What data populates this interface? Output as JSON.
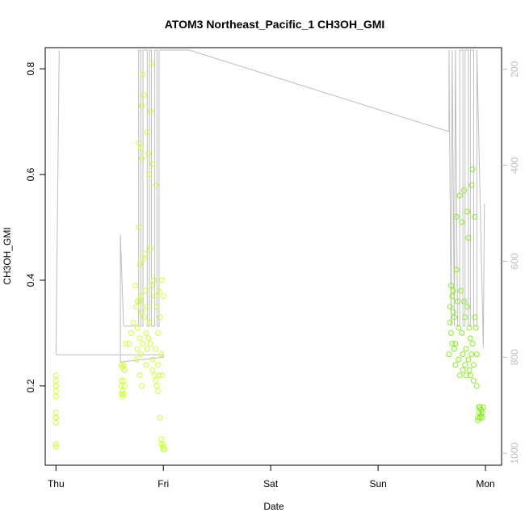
{
  "chart_data": {
    "type": "scatter",
    "title": "ATOM3 Northeast_Pacific_1 CH3OH_GMI",
    "xlabel": "Date",
    "ylabel": "CH3OH_GMI",
    "x_ticks": [
      "Thu",
      "Fri",
      "Sat",
      "Sun",
      "Mon"
    ],
    "x_tick_days": [
      0,
      1,
      2,
      3,
      4
    ],
    "xlim": [
      -0.1,
      4.15
    ],
    "ylim": [
      0.05,
      0.84
    ],
    "y_ticks": [
      0.2,
      0.4,
      0.6,
      0.8
    ],
    "right_axis": {
      "ticks": [
        200,
        400,
        600,
        800,
        1000
      ],
      "ylim": [
        155,
        1025
      ],
      "reversed": true,
      "color": "#bdbdbd"
    },
    "grid": false,
    "legend": "none",
    "point_colors": {
      "low_value": "#ccff33",
      "high_value": "#88ee22"
    },
    "series": [
      {
        "kind": "points",
        "x": [
          0.0,
          0.0,
          0.0,
          0.0,
          0.0,
          0.0,
          0.0,
          0.0,
          0.0,
          0.0,
          0.0,
          0.0,
          0.61,
          0.61,
          0.61,
          0.61,
          0.62,
          0.62,
          0.62,
          0.63,
          0.63,
          0.63,
          0.64,
          0.64,
          0.65,
          0.68,
          0.7,
          0.72,
          0.74,
          0.75,
          0.75,
          0.76,
          0.76,
          0.76,
          0.77,
          0.77,
          0.78,
          0.78,
          0.78,
          0.78,
          0.79,
          0.79,
          0.79,
          0.8,
          0.8,
          0.8,
          0.8,
          0.81,
          0.81,
          0.81,
          0.82,
          0.82,
          0.83,
          0.83,
          0.84,
          0.84,
          0.85,
          0.85,
          0.85,
          0.86,
          0.86,
          0.87,
          0.87,
          0.88,
          0.88,
          0.88,
          0.89,
          0.89,
          0.9,
          0.9,
          0.9,
          0.91,
          0.92,
          0.92,
          0.93,
          0.93,
          0.93,
          0.94,
          0.94,
          0.95,
          0.95,
          0.95,
          0.96,
          0.96,
          0.97,
          0.97,
          0.98,
          0.98,
          0.98,
          0.99,
          0.99,
          1.0,
          1.0,
          1.0,
          1.0,
          1.01,
          3.66,
          3.67,
          3.67,
          3.68,
          3.68,
          3.69,
          3.69,
          3.7,
          3.7,
          3.71,
          3.71,
          3.72,
          3.72,
          3.73,
          3.73,
          3.74,
          3.75,
          3.75,
          3.76,
          3.76,
          3.77,
          3.78,
          3.78,
          3.79,
          3.79,
          3.8,
          3.8,
          3.81,
          3.81,
          3.82,
          3.82,
          3.83,
          3.83,
          3.84,
          3.84,
          3.85,
          3.85,
          3.86,
          3.86,
          3.87,
          3.87,
          3.88,
          3.88,
          3.89,
          3.89,
          3.9,
          3.9,
          3.91,
          3.92,
          3.92,
          3.93,
          3.93,
          3.94,
          3.94,
          3.95,
          3.95,
          3.96,
          3.96,
          3.97,
          3.97,
          3.98
        ],
        "y": [
          0.22,
          0.21,
          0.2,
          0.19,
          0.18,
          0.15,
          0.14,
          0.13,
          0.09,
          0.085,
          0.2,
          0.14,
          0.24,
          0.21,
          0.2,
          0.185,
          0.235,
          0.19,
          0.18,
          0.24,
          0.21,
          0.185,
          0.23,
          0.2,
          0.28,
          0.28,
          0.3,
          0.32,
          0.39,
          0.35,
          0.25,
          0.36,
          0.31,
          0.27,
          0.66,
          0.5,
          0.43,
          0.36,
          0.29,
          0.22,
          0.65,
          0.37,
          0.26,
          0.73,
          0.63,
          0.34,
          0.2,
          0.79,
          0.44,
          0.28,
          0.75,
          0.33,
          0.45,
          0.38,
          0.3,
          0.24,
          0.68,
          0.35,
          0.27,
          0.64,
          0.29,
          0.6,
          0.32,
          0.72,
          0.46,
          0.28,
          0.81,
          0.39,
          0.62,
          0.25,
          0.23,
          0.4,
          0.37,
          0.22,
          0.58,
          0.27,
          0.21,
          0.35,
          0.2,
          0.3,
          0.24,
          0.19,
          0.38,
          0.22,
          0.33,
          0.14,
          0.26,
          0.1,
          0.09,
          0.4,
          0.22,
          0.37,
          0.09,
          0.085,
          0.08,
          0.08,
          0.26,
          0.32,
          0.35,
          0.3,
          0.39,
          0.37,
          0.28,
          0.38,
          0.34,
          0.33,
          0.27,
          0.28,
          0.24,
          0.52,
          0.42,
          0.36,
          0.25,
          0.31,
          0.56,
          0.22,
          0.38,
          0.51,
          0.3,
          0.23,
          0.26,
          0.57,
          0.36,
          0.33,
          0.24,
          0.27,
          0.22,
          0.53,
          0.35,
          0.25,
          0.48,
          0.31,
          0.23,
          0.29,
          0.22,
          0.58,
          0.26,
          0.61,
          0.28,
          0.24,
          0.21,
          0.33,
          0.52,
          0.31,
          0.26,
          0.2,
          0.14,
          0.135,
          0.16,
          0.15,
          0.14,
          0.16,
          0.145,
          0.155,
          0.14,
          0.15,
          0.16
        ]
      },
      {
        "kind": "line",
        "axis": "right",
        "color": "#bdbdbd",
        "x": [
          0.03,
          0.03,
          0.0,
          0.0,
          1.0,
          1.0,
          1.0,
          0.6,
          0.6,
          0.63,
          0.77,
          0.77,
          0.79,
          0.79,
          0.81,
          0.81,
          0.85,
          0.85,
          0.87,
          0.87,
          0.89,
          0.89,
          0.92,
          0.92,
          0.94,
          0.94,
          0.96,
          0.96,
          0.99,
          0.99,
          1.24,
          3.66,
          3.66,
          3.68,
          3.69,
          3.71,
          3.72,
          3.74,
          3.76,
          3.76,
          3.79,
          3.79,
          3.81,
          3.81,
          3.84,
          3.84,
          3.86,
          3.86,
          3.89,
          3.89,
          3.91,
          3.92,
          3.92,
          3.98,
          3.98,
          3.99,
          3.99
        ],
        "y": [
          160,
          160,
          795,
          795,
          795,
          795,
          800,
          810,
          545,
          735,
          735,
          160,
          160,
          735,
          735,
          160,
          160,
          735,
          735,
          160,
          160,
          735,
          735,
          160,
          160,
          735,
          735,
          160,
          160,
          160,
          160,
          330,
          160,
          735,
          160,
          735,
          160,
          735,
          735,
          160,
          160,
          735,
          735,
          160,
          160,
          735,
          735,
          160,
          160,
          735,
          735,
          735,
          160,
          780,
          780,
          480,
          480
        ]
      }
    ]
  }
}
